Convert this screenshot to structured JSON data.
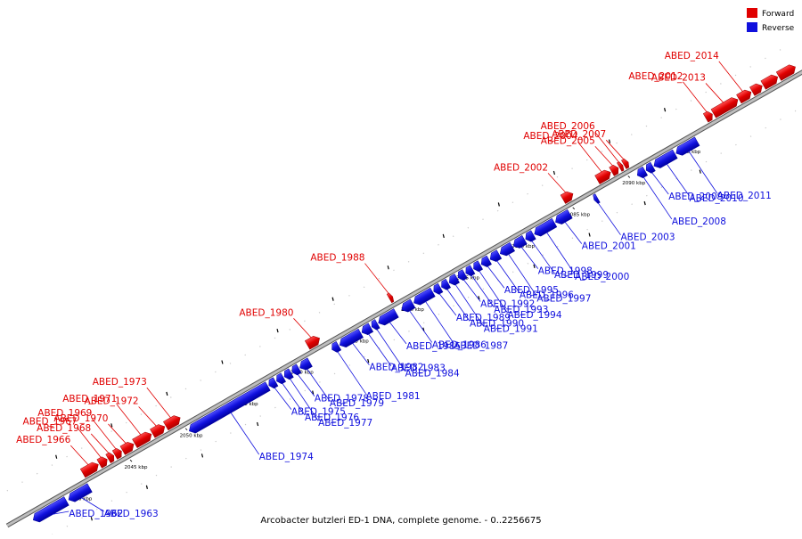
{
  "legend": {
    "forward": {
      "label": "Forward",
      "color": "#e00000"
    },
    "reverse": {
      "label": "Reverse",
      "color": "#1010dd"
    }
  },
  "caption": "Arcobacter butzleri ED-1 DNA, complete genome. - 0..2256675",
  "scale": {
    "ticks": [
      {
        "kb": 2040,
        "label": "2040 kbp"
      },
      {
        "kb": 2045,
        "label": "2045 kbp"
      },
      {
        "kb": 2050,
        "label": "2050 kbp"
      },
      {
        "kb": 2055,
        "label": "2055 kbp"
      },
      {
        "kb": 2060,
        "label": "2060 kbp"
      },
      {
        "kb": 2065,
        "label": "2065 kbp"
      },
      {
        "kb": 2070,
        "label": "2070 kbp"
      },
      {
        "kb": 2075,
        "label": "2075 kbp"
      },
      {
        "kb": 2080,
        "label": "2080 kbp"
      },
      {
        "kb": 2085,
        "label": "2085 kbp"
      },
      {
        "kb": 2090,
        "label": "2090 kbp"
      },
      {
        "kb": 2095,
        "label": "2095 kbp"
      }
    ]
  },
  "genes": [
    {
      "name": "ABED_1962",
      "strand": "reverse",
      "start": 2036.0,
      "end": 2039.0
    },
    {
      "name": "ABED_1963",
      "strand": "reverse",
      "start": 2039.2,
      "end": 2041.1
    },
    {
      "name": "ABED_1966",
      "strand": "forward",
      "start": 2041.2,
      "end": 2042.6
    },
    {
      "name": "ABED_1967",
      "strand": "forward",
      "start": 2042.7,
      "end": 2043.4
    },
    {
      "name": "ABED_1968",
      "strand": "forward",
      "start": 2043.5,
      "end": 2044.0
    },
    {
      "name": "ABED_1969",
      "strand": "forward",
      "start": 2044.1,
      "end": 2044.7
    },
    {
      "name": "ABED_1970",
      "strand": "forward",
      "start": 2044.8,
      "end": 2045.8
    },
    {
      "name": "ABED_1971",
      "strand": "forward",
      "start": 2045.9,
      "end": 2047.4
    },
    {
      "name": "ABED_1972",
      "strand": "forward",
      "start": 2047.5,
      "end": 2048.6
    },
    {
      "name": "ABED_1973",
      "strand": "forward",
      "start": 2048.7,
      "end": 2050.0
    },
    {
      "name": "ABED_1974",
      "strand": "reverse",
      "start": 2050.1,
      "end": 2057.2
    },
    {
      "name": "ABED_1975",
      "strand": "reverse",
      "start": 2057.3,
      "end": 2057.9
    },
    {
      "name": "ABED_1976",
      "strand": "reverse",
      "start": 2058.0,
      "end": 2058.6
    },
    {
      "name": "ABED_1977",
      "strand": "reverse",
      "start": 2058.7,
      "end": 2059.3
    },
    {
      "name": "ABED_1978",
      "strand": "reverse",
      "start": 2059.4,
      "end": 2060.0
    },
    {
      "name": "ABED_1979",
      "strand": "reverse",
      "start": 2060.1,
      "end": 2061.0
    },
    {
      "name": "ABED_1980",
      "strand": "forward",
      "start": 2061.5,
      "end": 2062.6
    },
    {
      "name": "ABED_1981",
      "strand": "reverse",
      "start": 2063.0,
      "end": 2063.6
    },
    {
      "name": "ABED_1982",
      "strand": "reverse",
      "start": 2063.7,
      "end": 2065.6
    },
    {
      "name": "ABED_1983",
      "strand": "reverse",
      "start": 2065.7,
      "end": 2066.5
    },
    {
      "name": "ABED_1984",
      "strand": "reverse",
      "start": 2066.6,
      "end": 2067.1
    },
    {
      "name": "ABED_1985",
      "strand": "reverse",
      "start": 2067.2,
      "end": 2068.8
    },
    {
      "name": "ABED_1988",
      "strand": "forward",
      "start": 2068.9,
      "end": 2069.2
    },
    {
      "name": "ABED_1986",
      "strand": "reverse",
      "start": 2069.3,
      "end": 2070.3
    },
    {
      "name": "ABED_1987",
      "strand": "reverse",
      "start": 2070.4,
      "end": 2072.1
    },
    {
      "name": "ABED_1989",
      "strand": "reverse",
      "start": 2072.2,
      "end": 2072.8
    },
    {
      "name": "ABED_1990",
      "strand": "reverse",
      "start": 2072.9,
      "end": 2073.5
    },
    {
      "name": "ABED_1991",
      "strand": "reverse",
      "start": 2073.6,
      "end": 2074.3
    },
    {
      "name": "ABED_1992",
      "strand": "reverse",
      "start": 2074.4,
      "end": 2075.0
    },
    {
      "name": "ABED_1993",
      "strand": "reverse",
      "start": 2075.1,
      "end": 2075.7
    },
    {
      "name": "ABED_1994",
      "strand": "reverse",
      "start": 2075.8,
      "end": 2076.4
    },
    {
      "name": "ABED_1995",
      "strand": "reverse",
      "start": 2076.5,
      "end": 2077.2
    },
    {
      "name": "ABED_1996",
      "strand": "reverse",
      "start": 2077.3,
      "end": 2078.1
    },
    {
      "name": "ABED_1997",
      "strand": "reverse",
      "start": 2078.2,
      "end": 2079.3
    },
    {
      "name": "ABED_1998",
      "strand": "reverse",
      "start": 2079.4,
      "end": 2080.4
    },
    {
      "name": "ABED_1999",
      "strand": "reverse",
      "start": 2080.5,
      "end": 2081.2
    },
    {
      "name": "ABED_2000",
      "strand": "reverse",
      "start": 2081.3,
      "end": 2083.1
    },
    {
      "name": "ABED_2001",
      "strand": "reverse",
      "start": 2083.2,
      "end": 2084.5
    },
    {
      "name": "ABED_2002",
      "strand": "forward",
      "start": 2084.6,
      "end": 2085.5
    },
    {
      "name": "ABED_2003",
      "strand": "reverse",
      "start": 2086.7,
      "end": 2087.0
    },
    {
      "name": "ABED_2004",
      "strand": "forward",
      "start": 2087.7,
      "end": 2088.9
    },
    {
      "name": "ABED_2005",
      "strand": "forward",
      "start": 2089.0,
      "end": 2089.6
    },
    {
      "name": "ABED_2006",
      "strand": "forward",
      "start": 2089.7,
      "end": 2090.0
    },
    {
      "name": "ABED_2007",
      "strand": "forward",
      "start": 2090.1,
      "end": 2090.5
    },
    {
      "name": "ABED_2008",
      "strand": "reverse",
      "start": 2090.6,
      "end": 2091.3
    },
    {
      "name": "ABED_2009",
      "strand": "reverse",
      "start": 2091.4,
      "end": 2092.0
    },
    {
      "name": "ABED_2010",
      "strand": "reverse",
      "start": 2092.1,
      "end": 2094.0
    },
    {
      "name": "ABED_2011",
      "strand": "reverse",
      "start": 2094.1,
      "end": 2096.0
    },
    {
      "name": "ABED_2012",
      "strand": "forward",
      "start": 2097.5,
      "end": 2098.1
    },
    {
      "name": "ABED_2013",
      "strand": "forward",
      "start": 2098.2,
      "end": 2100.4
    },
    {
      "name": "ABED_2014",
      "strand": "forward",
      "start": 2100.5,
      "end": 2101.6
    },
    {
      "name": "",
      "strand": "forward",
      "start": 2101.7,
      "end": 2102.6
    },
    {
      "name": "",
      "strand": "forward",
      "start": 2102.7,
      "end": 2104.0
    },
    {
      "name": "",
      "strand": "forward",
      "start": 2104.1,
      "end": 2105.6
    }
  ]
}
